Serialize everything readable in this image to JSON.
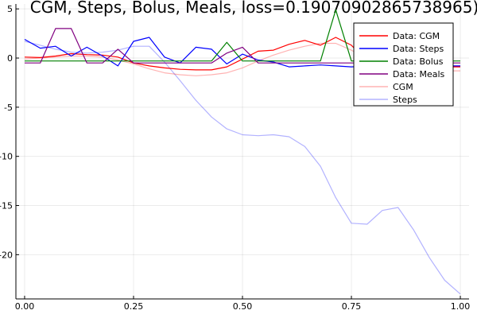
{
  "chart_data": {
    "type": "line",
    "title": "CGM, Steps, Bolus, Meals, loss=0.19070902865738965)",
    "xlabel": "",
    "ylabel": "",
    "xlim": [
      -0.02,
      1.02
    ],
    "ylim": [
      -24.5,
      5.5
    ],
    "x_ticks": [
      0.0,
      0.25,
      0.5,
      0.75,
      1.0
    ],
    "x_tick_labels": [
      "0.00",
      "0.25",
      "0.50",
      "0.75",
      "1.00"
    ],
    "y_ticks": [
      5,
      0,
      -5,
      -10,
      -15,
      -20
    ],
    "y_tick_labels": [
      "5",
      "0",
      "-5",
      "-10",
      "-15",
      "-20"
    ],
    "grid": true,
    "legend_position": "top-right",
    "series": [
      {
        "name": "Data: CGM",
        "color": "#ff0000",
        "opacity": 1,
        "x": [
          0.0,
          0.036,
          0.071,
          0.107,
          0.143,
          0.179,
          0.214,
          0.25,
          0.286,
          0.321,
          0.357,
          0.393,
          0.429,
          0.464,
          0.5,
          0.536,
          0.571,
          0.607,
          0.643,
          0.679,
          0.714,
          0.75,
          0.786,
          0.821,
          0.857,
          0.893,
          0.929,
          0.964,
          1.0
        ],
        "y": [
          0.1,
          0.05,
          0.2,
          0.45,
          0.35,
          0.3,
          0.1,
          -0.5,
          -0.8,
          -1.0,
          -1.15,
          -1.2,
          -1.2,
          -0.9,
          -0.1,
          0.7,
          0.8,
          1.4,
          1.8,
          1.3,
          2.1,
          1.3,
          -0.4,
          -0.6,
          -0.7,
          -0.8,
          -0.9,
          -0.9,
          -0.9
        ]
      },
      {
        "name": "Data: Steps",
        "color": "#0000ff",
        "opacity": 1,
        "x": [
          0.0,
          0.036,
          0.071,
          0.107,
          0.143,
          0.179,
          0.214,
          0.25,
          0.286,
          0.321,
          0.357,
          0.393,
          0.429,
          0.464,
          0.5,
          0.536,
          0.571,
          0.607,
          0.643,
          0.679,
          0.714,
          0.75,
          0.786,
          0.821,
          0.857,
          0.893,
          0.929,
          0.964,
          1.0
        ],
        "y": [
          1.9,
          1.0,
          1.2,
          0.2,
          1.1,
          0.2,
          -0.8,
          1.7,
          2.1,
          0.1,
          -0.5,
          1.1,
          0.9,
          -0.6,
          0.4,
          -0.2,
          -0.4,
          -0.9,
          -0.8,
          -0.7,
          -0.8,
          -0.9,
          -0.8,
          -0.8,
          -0.8,
          -0.8,
          -0.8,
          -0.8,
          -0.8
        ]
      },
      {
        "name": "Data: Bolus",
        "color": "#008000",
        "opacity": 1,
        "x": [
          0.0,
          0.036,
          0.071,
          0.107,
          0.143,
          0.179,
          0.214,
          0.25,
          0.286,
          0.321,
          0.357,
          0.393,
          0.429,
          0.464,
          0.5,
          0.536,
          0.571,
          0.607,
          0.643,
          0.679,
          0.714,
          0.75,
          0.786,
          0.821,
          0.857,
          0.893,
          0.929,
          0.964,
          1.0
        ],
        "y": [
          -0.3,
          -0.3,
          -0.3,
          -0.3,
          -0.3,
          -0.3,
          -0.3,
          -0.3,
          -0.3,
          -0.3,
          -0.3,
          -0.3,
          -0.3,
          1.6,
          -0.3,
          -0.3,
          -0.3,
          -0.3,
          -0.3,
          -0.3,
          4.9,
          -0.3,
          -0.3,
          -0.3,
          -0.3,
          -0.3,
          -0.3,
          -0.3,
          -0.3
        ]
      },
      {
        "name": "Data: Meals",
        "color": "#800080",
        "opacity": 1,
        "x": [
          0.0,
          0.036,
          0.071,
          0.107,
          0.143,
          0.179,
          0.214,
          0.25,
          0.286,
          0.321,
          0.357,
          0.393,
          0.429,
          0.464,
          0.5,
          0.536,
          0.571,
          0.607,
          0.643,
          0.679,
          0.714,
          0.75,
          0.786,
          0.821,
          0.857,
          0.893,
          0.929,
          0.964,
          1.0
        ],
        "y": [
          -0.5,
          -0.5,
          3.0,
          3.0,
          -0.5,
          -0.5,
          0.9,
          -0.5,
          -0.5,
          -0.5,
          -0.5,
          -0.5,
          -0.5,
          0.5,
          1.1,
          -0.5,
          -0.5,
          -0.5,
          -0.5,
          -0.5,
          -0.5,
          -0.5,
          -0.5,
          -0.5,
          -0.5,
          -0.5,
          -0.5,
          -0.5,
          -0.5
        ]
      },
      {
        "name": "CGM",
        "color": "#ff0000",
        "opacity": 0.3,
        "x": [
          0.0,
          0.036,
          0.071,
          0.107,
          0.143,
          0.179,
          0.214,
          0.25,
          0.286,
          0.321,
          0.357,
          0.393,
          0.429,
          0.464,
          0.5,
          0.536,
          0.571,
          0.607,
          0.643,
          0.679,
          0.714,
          0.75,
          0.786,
          0.821,
          0.857,
          0.893,
          0.929,
          0.964,
          1.0
        ],
        "y": [
          -0.1,
          0.0,
          0.1,
          0.2,
          0.2,
          0.1,
          -0.2,
          -0.6,
          -1.1,
          -1.5,
          -1.7,
          -1.8,
          -1.7,
          -1.5,
          -1.0,
          -0.3,
          0.3,
          0.8,
          1.2,
          1.5,
          1.5,
          0.8,
          -0.1,
          -0.7,
          -1.0,
          -1.2,
          -1.3,
          -1.3,
          -1.3
        ]
      },
      {
        "name": "Steps",
        "color": "#0000ff",
        "opacity": 0.3,
        "x": [
          0.0,
          0.036,
          0.071,
          0.107,
          0.143,
          0.179,
          0.214,
          0.25,
          0.286,
          0.321,
          0.357,
          0.393,
          0.429,
          0.464,
          0.5,
          0.536,
          0.571,
          0.607,
          0.643,
          0.679,
          0.714,
          0.75,
          0.786,
          0.821,
          0.857,
          0.893,
          0.929,
          0.964,
          1.0
        ],
        "y": [
          1.7,
          1.3,
          0.9,
          0.6,
          0.5,
          0.6,
          0.8,
          1.2,
          1.2,
          -0.4,
          -2.3,
          -4.3,
          -6.0,
          -7.2,
          -7.8,
          -7.9,
          -7.8,
          -8.0,
          -9.0,
          -11.0,
          -14.2,
          -16.8,
          -16.9,
          -15.5,
          -15.2,
          -17.5,
          -20.3,
          -22.6,
          -24.0
        ]
      }
    ]
  }
}
